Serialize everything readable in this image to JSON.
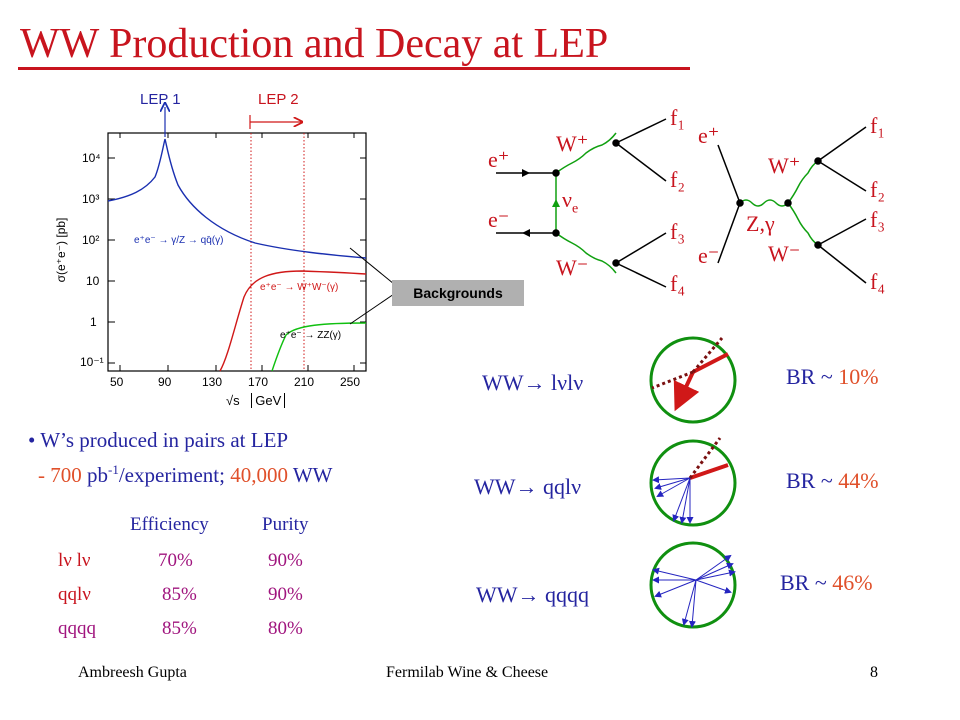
{
  "slide": {
    "title": "WW Production and Decay at LEP",
    "footer": {
      "author": "Ambreesh Gupta",
      "event": "Fermilab Wine & Cheese",
      "page": "8"
    }
  },
  "cross_section_plot": {
    "lep1_label": "LEP 1",
    "lep2_label": "LEP 2",
    "ylabel": "σ(e⁺e⁻) [pb]",
    "xlabel_sqrt": "√s",
    "xlabel_unit": "GeV",
    "x_ticks": [
      "50",
      "90",
      "130",
      "170",
      "210",
      "250"
    ],
    "y_ticks": [
      "10⁻¹",
      "1",
      "10",
      "10²",
      "10³",
      "10⁴"
    ],
    "curve_labels": {
      "qq": "e⁺e⁻ → γ/Z → qq̄(γ)",
      "ww": "e⁺e⁻ → W⁺W⁻(γ)",
      "zz": "e⁺e⁻ → ZZ(γ)"
    },
    "backgrounds_label": "Backgrounds",
    "colors": {
      "qq": "#1a2fb0",
      "ww": "#d01818",
      "zz": "#10c010"
    }
  },
  "feynman": {
    "t_channel": {
      "ep": "e⁺",
      "em": "e⁻",
      "nu": "ν",
      "nu_sub": "e",
      "wp": "W⁺",
      "wm": "W⁻",
      "f1": "f₁",
      "f2": "f₂",
      "f3": "f₃",
      "f4": "f₄"
    },
    "s_channel": {
      "ep": "e⁺",
      "em": "e⁻",
      "zg": "Z,γ",
      "wp": "W⁺",
      "wm": "W⁻",
      "f1": "f₁",
      "f2": "f₂",
      "f3": "f₃",
      "f4": "f₄"
    }
  },
  "bullets": {
    "line1": "W’s produced in pairs at LEP",
    "line2_dash": "- 700",
    "line2_unit": " pb",
    "line2_exp": "-1",
    "line2_rest": "/experiment; ",
    "line2_count": "40,000",
    "line2_ww": " WW"
  },
  "eff_table": {
    "headers": {
      "efficiency": "Efficiency",
      "purity": "Purity"
    },
    "rows": [
      {
        "channel": "lν lν",
        "efficiency": "70%",
        "purity": "90%"
      },
      {
        "channel": "qqlν",
        "efficiency": "85%",
        "purity": "90%"
      },
      {
        "channel": "qqqq",
        "efficiency": "85%",
        "purity": "80%"
      }
    ]
  },
  "decays": [
    {
      "label": "WW→ lνlν",
      "br_prefix": "BR ~ ",
      "br_value": "10%"
    },
    {
      "label": "WW→ qqlν",
      "br_prefix": "BR ~ ",
      "br_value": "44%"
    },
    {
      "label": "WW→ qqqq",
      "br_prefix": "BR ~ ",
      "br_value": "46%"
    }
  ]
}
